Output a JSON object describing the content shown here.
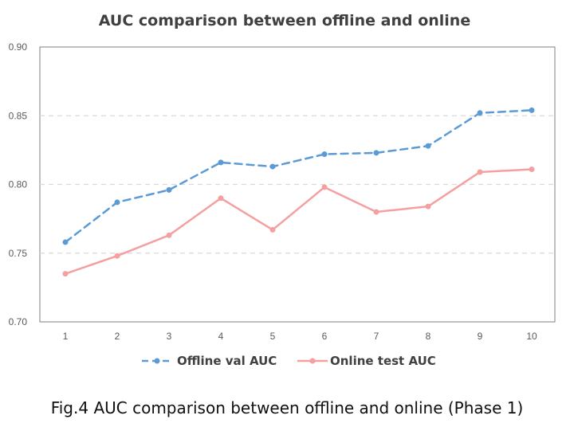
{
  "caption": "Fig.4 AUC comparison between offline and online (Phase 1)",
  "chart_data": {
    "type": "line",
    "title": "AUC comparison between offline and online",
    "xlabel": "",
    "ylabel": "",
    "x": [
      1,
      2,
      3,
      4,
      5,
      6,
      7,
      8,
      9,
      10
    ],
    "ylim": [
      0.7,
      0.9
    ],
    "yticks": [
      "0.70",
      "0.75",
      "0.80",
      "0.85",
      "0.90"
    ],
    "grid": "horizontal dashed",
    "legend": "bottom-center",
    "series": [
      {
        "name": "Offline val AUC",
        "color": "#5b9bd5",
        "style": "dashed",
        "values": [
          0.758,
          0.787,
          0.796,
          0.816,
          0.813,
          0.822,
          0.823,
          0.828,
          0.852,
          0.854
        ]
      },
      {
        "name": "Online test AUC",
        "color": "#f4a0a0",
        "style": "solid",
        "values": [
          0.735,
          0.748,
          0.763,
          0.79,
          0.767,
          0.798,
          0.78,
          0.784,
          0.809,
          0.811
        ]
      }
    ]
  }
}
